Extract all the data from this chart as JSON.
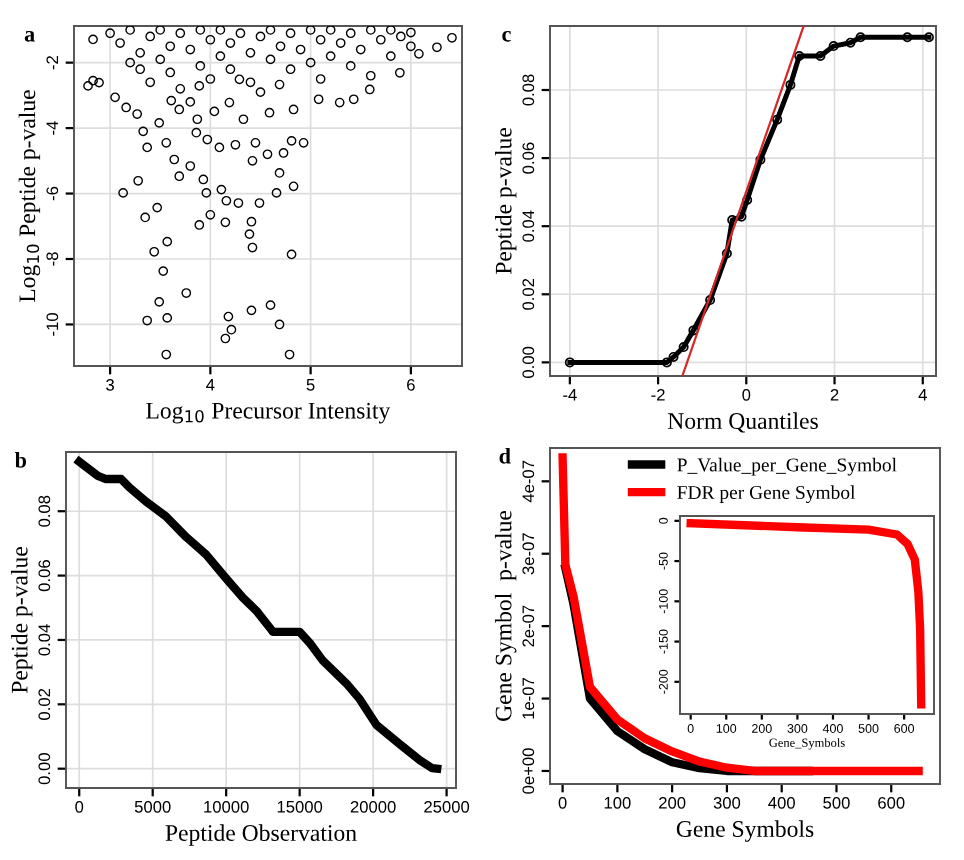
{
  "chart_data": [
    {
      "type": "scatter",
      "title": "a",
      "xlabel": "Log$_{10}$ Precursor Intensity",
      "ylabel": "Log$_{10}$ Peptide p-value",
      "xlim": [
        2.64,
        6.51
      ],
      "ylim": [
        -11.27,
        -0.88
      ],
      "xticks": [
        3,
        4,
        5,
        6
      ],
      "yticks": [
        -10,
        -8,
        -6,
        -4,
        -2
      ],
      "grid": true,
      "marker": "circle",
      "series": [
        {
          "color": "#000000",
          "x": [
            3.56,
            3.37,
            3.49,
            3.57,
            3.76,
            3.53,
            3.44,
            3.57,
            3.35,
            3.13,
            3.28,
            3.47,
            3.89,
            4.0,
            3.96,
            4.16,
            4.15,
            4.41,
            4.39,
            4.42,
            4.41,
            4.6,
            4.69,
            4.79,
            4.15,
            4.21,
            4.18,
            4.81,
            4.83,
            4.69,
            4.66,
            4.49,
            4.28,
            4.11,
            3.93,
            4.93,
            4.81,
            4.73,
            4.57,
            4.42,
            4.45,
            4.25,
            4.09,
            3.97,
            3.8,
            3.69,
            3.64,
            3.56,
            3.37,
            3.49,
            3.33,
            3.27,
            3.16,
            3.05,
            2.89,
            2.83,
            2.78,
            3.86,
            3.87,
            3.61,
            3.69,
            4.04,
            4.19,
            4.33,
            4.59,
            4.83,
            5.08,
            5.29,
            5.43,
            5.59,
            5.89,
            6.08,
            6.26,
            6.41,
            6.0,
            2.83,
            4.29,
            3.89,
            4.69,
            3.0,
            3.1,
            3.2,
            3.3,
            3.4,
            3.5,
            3.5,
            3.6,
            3.6,
            3.7,
            3.7,
            3.8,
            3.8,
            3.9,
            3.9,
            4.0,
            4.0,
            4.1,
            4.1,
            4.2,
            4.2,
            4.3,
            4.4,
            4.4,
            4.5,
            4.6,
            4.6,
            4.7,
            4.8,
            4.8,
            4.9,
            5.0,
            5.0,
            5.1,
            5.2,
            5.2,
            5.3,
            5.4,
            5.4,
            5.5,
            5.6,
            5.6,
            5.7,
            5.8,
            5.8,
            5.9,
            6.0,
            3.3,
            3.2,
            3.4,
            4.5,
            5.1
          ],
          "values": [
            -10.92,
            -9.88,
            -9.31,
            -9.8,
            -9.04,
            -8.37,
            -7.78,
            -7.47,
            -6.73,
            -5.98,
            -5.61,
            -6.43,
            -6.96,
            -6.65,
            -5.98,
            -6.22,
            -6.88,
            -6.86,
            -7.24,
            -7.65,
            -9.57,
            -9.41,
            -10.0,
            -10.92,
            -10.43,
            -10.16,
            -9.76,
            -7.86,
            -5.78,
            -5.37,
            -5.98,
            -6.29,
            -6.29,
            -5.88,
            -5.57,
            -4.45,
            -4.39,
            -4.76,
            -4.8,
            -5.0,
            -4.45,
            -4.51,
            -4.59,
            -4.35,
            -5.16,
            -5.47,
            -4.96,
            -4.45,
            -4.59,
            -3.84,
            -4.1,
            -3.57,
            -3.37,
            -3.06,
            -2.61,
            -2.55,
            -2.71,
            -4.14,
            -3.73,
            -3.16,
            -3.43,
            -3.49,
            -3.22,
            -3.73,
            -3.53,
            -3.43,
            -3.12,
            -3.22,
            -3.12,
            -2.82,
            -2.31,
            -1.73,
            -1.53,
            -1.24,
            -1.08,
            -1.29,
            -2.51,
            -2.71,
            -2.67,
            -1.1,
            -1.4,
            -1.0,
            -1.7,
            -1.2,
            -1.9,
            -1.0,
            -1.5,
            -2.3,
            -1.1,
            -2.8,
            -1.6,
            -3.2,
            -1.0,
            -2.1,
            -1.3,
            -2.5,
            -1.8,
            -1.0,
            -1.4,
            -2.2,
            -1.1,
            -1.7,
            -2.6,
            -1.2,
            -1.9,
            -1.0,
            -1.5,
            -2.2,
            -1.1,
            -1.6,
            -1.0,
            -2.0,
            -1.3,
            -1.8,
            -1.0,
            -1.4,
            -2.1,
            -1.1,
            -1.6,
            -1.0,
            -2.4,
            -1.3,
            -1.0,
            -1.8,
            -1.2,
            -1.5,
            -2.2,
            -2.0,
            -2.6,
            -2.9,
            -2.5
          ]
        }
      ]
    },
    {
      "type": "line",
      "title": "c",
      "xlabel": "Norm Quantiles",
      "ylabel": "Peptide p-value",
      "xlim": [
        -4.45,
        4.3
      ],
      "ylim": [
        -0.004,
        0.0988
      ],
      "xticks": [
        -4,
        -2,
        0,
        2,
        4
      ],
      "yticks": [
        {
          "value": 0,
          "label": "0.00"
        },
        {
          "value": 0.02,
          "label": "0.02"
        },
        {
          "value": 0.04,
          "label": "0.04"
        },
        {
          "value": 0.06,
          "label": "0.06"
        },
        {
          "value": 0.08,
          "label": "0.08"
        }
      ],
      "grid": true,
      "series": [
        {
          "color": "#000000",
          "marker": "circle",
          "x": [
            -4,
            -1.8,
            -1.65,
            -1.42,
            -1.2,
            -0.82,
            -0.44,
            -0.32,
            -0.11,
            0.02,
            0.32,
            0.7,
            1.0,
            1.2,
            1.68,
            1.98,
            2.36,
            2.59,
            3.65,
            4.14
          ],
          "values": [
            0.0,
            0.0,
            0.0016,
            0.0045,
            0.0094,
            0.0183,
            0.032,
            0.0418,
            0.0428,
            0.0477,
            0.0595,
            0.0713,
            0.0815,
            0.09,
            0.09,
            0.0929,
            0.0939,
            0.0955,
            0.0955,
            0.0955
          ]
        },
        {
          "color": "#d62728",
          "x": [
            -1.45,
            1.3
          ],
          "values": [
            -0.004,
            0.0988
          ]
        }
      ]
    },
    {
      "type": "line",
      "title": "b",
      "xlabel": "Peptide Observation",
      "ylabel": "Peptide p-value",
      "xlim": [
        -900,
        25640
      ],
      "ylim": [
        -0.006,
        0.0984
      ],
      "xticks": [
        0,
        5000,
        10000,
        15000,
        20000,
        25000
      ],
      "yticks": [
        {
          "value": 0,
          "label": "0.00"
        },
        {
          "value": 0.02,
          "label": "0.02"
        },
        {
          "value": 0.04,
          "label": "0.04"
        },
        {
          "value": 0.06,
          "label": "0.06"
        },
        {
          "value": 0.08,
          "label": "0.08"
        }
      ],
      "grid": true,
      "series": [
        {
          "color": "#000000",
          "x": [
            0,
            1270,
            1820,
            2860,
            3410,
            4550,
            5900,
            7270,
            8180,
            8640,
            10000,
            11140,
            12050,
            13090,
            13180,
            15000,
            15680,
            16590,
            18180,
            19090,
            20230,
            21820,
            23180,
            24000,
            24360
          ],
          "values": [
            0.0954,
            0.091,
            0.09,
            0.09,
            0.0874,
            0.083,
            0.0784,
            0.072,
            0.0684,
            0.0665,
            0.0591,
            0.0531,
            0.0491,
            0.0431,
            0.0425,
            0.0425,
            0.0391,
            0.0335,
            0.0265,
            0.0216,
            0.0136,
            0.0076,
            0.0026,
            0.0002,
            0.0
          ]
        }
      ]
    },
    {
      "type": "line",
      "title": "d",
      "xlabel": "Gene Symbols",
      "ylabel": "Gene Symbol  p-value",
      "xlim": [
        -23,
        689
      ],
      "ylim": [
        -1.8e-08,
        4.46e-07
      ],
      "xticks": [
        0,
        100,
        200,
        300,
        400,
        500,
        600
      ],
      "yticks": [
        {
          "value": 0,
          "label": "0e+00"
        },
        {
          "value": 1e-07,
          "label": "1e-07"
        },
        {
          "value": 2e-07,
          "label": "2e-07"
        },
        {
          "value": 3e-07,
          "label": "3e-07"
        },
        {
          "value": 4e-07,
          "label": "4e-07"
        }
      ],
      "grid": false,
      "legend": "top",
      "series": [
        {
          "name": "P_Value_per_Gene_Symbol",
          "color": "#000000",
          "x": [
            5,
            20,
            50,
            100,
            150,
            200,
            250,
            300,
            350,
            450
          ],
          "values": [
            2.8e-07,
            2.3e-07,
            1e-07,
            5.5e-08,
            3e-08,
            1.2e-08,
            4e-09,
            0,
            0,
            0
          ]
        },
        {
          "name": "FDR per Gene Symbol",
          "color": "#ff0000",
          "x": [
            0,
            5,
            20,
            50,
            100,
            150,
            200,
            250,
            300,
            350,
            450,
            550,
            650
          ],
          "values": [
            4.33e-07,
            2.85e-07,
            2.41e-07,
            1.16e-07,
            7.1e-08,
            4.5e-08,
            2.7e-08,
            1.3e-08,
            4.5e-09,
            0,
            0,
            0,
            0
          ]
        }
      ]
    },
    {
      "type": "line",
      "xlabel": "Gene_Symbols",
      "xlim": [
        -30,
        684
      ],
      "ylim": [
        -240,
        6
      ],
      "xticks": [
        0,
        100,
        200,
        300,
        400,
        500,
        600
      ],
      "yticks": [
        -200,
        -150,
        -100,
        -50,
        0
      ],
      "grid": false,
      "series": [
        {
          "color": "#ff0000",
          "x": [
            0,
            300,
            500,
            580,
            610,
            630,
            640,
            645,
            648
          ],
          "values": [
            -3,
            -8,
            -11,
            -17,
            -29,
            -48,
            -88,
            -134,
            -228
          ]
        }
      ]
    }
  ]
}
